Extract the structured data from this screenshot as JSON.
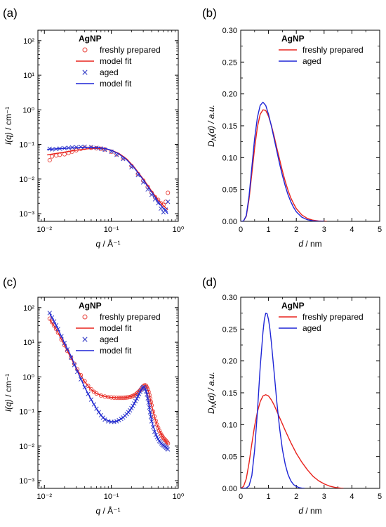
{
  "chart_data": [
    {
      "panel": "(a)",
      "type": "scatter",
      "xscale": "log",
      "yscale": "log",
      "xlim": [
        0.008,
        1.0
      ],
      "ylim": [
        0.0006,
        200
      ],
      "xticks": [
        0.01,
        0.1,
        1
      ],
      "xticklabels": [
        "10⁻²",
        "10⁻¹",
        "10⁰"
      ],
      "yticks": [
        0.001,
        0.01,
        0.1,
        1,
        10,
        100
      ],
      "yticklabels": [
        "10⁻³",
        "10⁻²",
        "10⁻¹",
        "10⁰",
        "10¹",
        "10²"
      ],
      "xlabel": "q / Å⁻¹",
      "ylabel": "I(q) / cm⁻¹",
      "legend_title": "AgNP",
      "legend": [
        "freshly prepared",
        "model fit",
        "aged",
        "model fit"
      ],
      "series": [
        {
          "name": "freshly prepared",
          "kind": "markers",
          "marker": "circle",
          "color": "#e8413a",
          "x": [
            0.012,
            0.013,
            0.015,
            0.017,
            0.02,
            0.023,
            0.026,
            0.03,
            0.035,
            0.04,
            0.05,
            0.06,
            0.07,
            0.08,
            0.1,
            0.12,
            0.15,
            0.2,
            0.25,
            0.3,
            0.35,
            0.4,
            0.45,
            0.5,
            0.55,
            0.6,
            0.65,
            0.7
          ],
          "y": [
            0.035,
            0.045,
            0.048,
            0.05,
            0.052,
            0.057,
            0.062,
            0.068,
            0.075,
            0.08,
            0.08,
            0.078,
            0.075,
            0.072,
            0.062,
            0.052,
            0.04,
            0.024,
            0.014,
            0.009,
            0.006,
            0.004,
            0.003,
            0.0025,
            0.002,
            0.0018,
            0.0022,
            0.004
          ]
        },
        {
          "name": "model fit",
          "kind": "line",
          "color": "#e8231d",
          "x": [
            0.011,
            0.02,
            0.03,
            0.045,
            0.06,
            0.08,
            0.1,
            0.13,
            0.17,
            0.22,
            0.3,
            0.4,
            0.5,
            0.6,
            0.7
          ],
          "y": [
            0.05,
            0.06,
            0.068,
            0.075,
            0.077,
            0.075,
            0.068,
            0.055,
            0.038,
            0.022,
            0.01,
            0.0045,
            0.0025,
            0.0017,
            0.0013
          ]
        },
        {
          "name": "aged",
          "kind": "markers",
          "marker": "cross",
          "color": "#3a43c8",
          "x": [
            0.012,
            0.013,
            0.015,
            0.017,
            0.02,
            0.023,
            0.026,
            0.03,
            0.035,
            0.04,
            0.05,
            0.06,
            0.07,
            0.08,
            0.1,
            0.12,
            0.15,
            0.2,
            0.25,
            0.3,
            0.35,
            0.4,
            0.45,
            0.5,
            0.55,
            0.6,
            0.65,
            0.7
          ],
          "y": [
            0.075,
            0.072,
            0.074,
            0.076,
            0.078,
            0.08,
            0.082,
            0.083,
            0.085,
            0.086,
            0.084,
            0.08,
            0.076,
            0.07,
            0.062,
            0.05,
            0.038,
            0.022,
            0.013,
            0.008,
            0.005,
            0.0035,
            0.0026,
            0.002,
            0.0014,
            0.0011,
            0.0013,
            0.0022
          ]
        },
        {
          "name": "model fit",
          "kind": "line",
          "color": "#1e25d6",
          "x": [
            0.011,
            0.02,
            0.03,
            0.045,
            0.06,
            0.08,
            0.1,
            0.13,
            0.17,
            0.22,
            0.3,
            0.4,
            0.5,
            0.6,
            0.7
          ],
          "y": [
            0.072,
            0.077,
            0.081,
            0.083,
            0.082,
            0.077,
            0.068,
            0.053,
            0.036,
            0.021,
            0.0095,
            0.0042,
            0.0022,
            0.0014,
            0.001
          ]
        }
      ]
    },
    {
      "panel": "(b)",
      "type": "line",
      "xlim": [
        0,
        5
      ],
      "ylim": [
        0,
        0.3
      ],
      "xticks": [
        0,
        1,
        2,
        3,
        4,
        5
      ],
      "xticklabels": [
        "0",
        "1",
        "2",
        "3",
        "4",
        "5"
      ],
      "yticks": [
        0,
        0.05,
        0.1,
        0.15,
        0.2,
        0.25,
        0.3
      ],
      "yticklabels": [
        "0.00",
        "0.05",
        "0.10",
        "0.15",
        "0.20",
        "0.25",
        "0.30"
      ],
      "xlabel": "d / nm",
      "ylabel": "D_N(d) / a.u.",
      "legend_title": "AgNP",
      "legend": [
        "freshly prepared",
        "aged"
      ],
      "series": [
        {
          "name": "freshly prepared",
          "color": "#e8231d",
          "x": [
            0,
            0.1,
            0.2,
            0.3,
            0.4,
            0.5,
            0.6,
            0.7,
            0.8,
            0.9,
            1.0,
            1.1,
            1.2,
            1.3,
            1.4,
            1.5,
            1.6,
            1.7,
            1.8,
            1.9,
            2.0,
            2.2,
            2.4,
            2.6,
            2.8,
            3.0,
            3.1
          ],
          "y": [
            0,
            0.0005,
            0.008,
            0.035,
            0.075,
            0.115,
            0.148,
            0.168,
            0.175,
            0.174,
            0.165,
            0.151,
            0.134,
            0.115,
            0.097,
            0.079,
            0.063,
            0.049,
            0.037,
            0.028,
            0.02,
            0.01,
            0.0045,
            0.0018,
            0.0006,
            0.0002,
            0
          ]
        },
        {
          "name": "aged",
          "color": "#1e25d6",
          "x": [
            0,
            0.1,
            0.2,
            0.3,
            0.4,
            0.5,
            0.6,
            0.7,
            0.8,
            0.9,
            1.0,
            1.1,
            1.2,
            1.3,
            1.4,
            1.5,
            1.6,
            1.7,
            1.8,
            1.9,
            2.0,
            2.2,
            2.4,
            2.6,
            2.8,
            3.0
          ],
          "y": [
            0,
            0.0005,
            0.009,
            0.04,
            0.085,
            0.13,
            0.163,
            0.182,
            0.187,
            0.182,
            0.168,
            0.15,
            0.13,
            0.11,
            0.09,
            0.072,
            0.056,
            0.042,
            0.031,
            0.022,
            0.015,
            0.0065,
            0.0025,
            0.0008,
            0.0002,
            0
          ]
        }
      ]
    },
    {
      "panel": "(c)",
      "type": "scatter",
      "xscale": "log",
      "yscale": "log",
      "xlim": [
        0.008,
        1.0
      ],
      "ylim": [
        0.0006,
        200
      ],
      "xticks": [
        0.01,
        0.1,
        1
      ],
      "xticklabels": [
        "10⁻²",
        "10⁻¹",
        "10⁰"
      ],
      "yticks": [
        0.001,
        0.01,
        0.1,
        1,
        10,
        100
      ],
      "yticklabels": [
        "10⁻³",
        "10⁻²",
        "10⁻¹",
        "10⁰",
        "10¹",
        "10²"
      ],
      "xlabel": "q / Å⁻¹",
      "ylabel": "I(q) / cm⁻¹",
      "legend_title": "AgNP",
      "legend": [
        "freshly prepared",
        "model fit",
        "aged",
        "model fit"
      ],
      "series": [
        {
          "name": "freshly prepared",
          "kind": "markers",
          "marker": "circle",
          "color": "#e8413a",
          "x": [
            0.012,
            0.013,
            0.014,
            0.015,
            0.016,
            0.018,
            0.02,
            0.022,
            0.025,
            0.028,
            0.031,
            0.035,
            0.04,
            0.045,
            0.05,
            0.055,
            0.06,
            0.07,
            0.08,
            0.09,
            0.1,
            0.11,
            0.12,
            0.13,
            0.14,
            0.15,
            0.16,
            0.17,
            0.18,
            0.19,
            0.2,
            0.21,
            0.22,
            0.23,
            0.24,
            0.25,
            0.26,
            0.27,
            0.28,
            0.29,
            0.3,
            0.31,
            0.32,
            0.33,
            0.34,
            0.35,
            0.36,
            0.37,
            0.38,
            0.39,
            0.4,
            0.42,
            0.44,
            0.46,
            0.48,
            0.5,
            0.52,
            0.54,
            0.56,
            0.58,
            0.6,
            0.62,
            0.64,
            0.66,
            0.68,
            0.7
          ],
          "y": [
            48,
            38,
            30,
            24,
            19,
            12,
            8.2,
            5.6,
            3.6,
            2.4,
            1.65,
            1.12,
            0.75,
            0.55,
            0.44,
            0.37,
            0.33,
            0.29,
            0.27,
            0.26,
            0.255,
            0.25,
            0.248,
            0.247,
            0.247,
            0.248,
            0.25,
            0.253,
            0.257,
            0.262,
            0.27,
            0.28,
            0.295,
            0.31,
            0.33,
            0.355,
            0.38,
            0.41,
            0.45,
            0.49,
            0.53,
            0.56,
            0.57,
            0.55,
            0.5,
            0.44,
            0.37,
            0.3,
            0.24,
            0.19,
            0.15,
            0.1,
            0.072,
            0.054,
            0.042,
            0.034,
            0.028,
            0.024,
            0.021,
            0.019,
            0.017,
            0.016,
            0.015,
            0.014,
            0.013,
            0.012
          ]
        },
        {
          "name": "model fit",
          "kind": "line",
          "color": "#e8231d",
          "x": [
            0.012,
            0.015,
            0.02,
            0.025,
            0.03,
            0.04,
            0.05,
            0.06,
            0.08,
            0.1,
            0.13,
            0.16,
            0.2,
            0.24,
            0.27,
            0.3,
            0.32,
            0.33,
            0.34,
            0.36,
            0.38,
            0.4,
            0.45,
            0.5,
            0.55,
            0.6,
            0.65,
            0.7
          ],
          "y": [
            46,
            24,
            8.0,
            3.5,
            1.8,
            0.72,
            0.43,
            0.33,
            0.27,
            0.255,
            0.247,
            0.25,
            0.27,
            0.33,
            0.41,
            0.53,
            0.57,
            0.55,
            0.5,
            0.37,
            0.24,
            0.15,
            0.062,
            0.034,
            0.023,
            0.017,
            0.014,
            0.011
          ]
        },
        {
          "name": "aged",
          "kind": "markers",
          "marker": "cross",
          "color": "#3a43c8",
          "x": [
            0.012,
            0.013,
            0.014,
            0.015,
            0.016,
            0.018,
            0.02,
            0.022,
            0.025,
            0.028,
            0.031,
            0.035,
            0.04,
            0.045,
            0.05,
            0.055,
            0.06,
            0.065,
            0.07,
            0.075,
            0.08,
            0.09,
            0.1,
            0.11,
            0.12,
            0.13,
            0.14,
            0.15,
            0.16,
            0.17,
            0.18,
            0.19,
            0.2,
            0.21,
            0.22,
            0.23,
            0.24,
            0.25,
            0.26,
            0.27,
            0.28,
            0.29,
            0.3,
            0.31,
            0.32,
            0.33,
            0.34,
            0.35,
            0.36,
            0.37,
            0.38,
            0.39,
            0.4,
            0.42,
            0.44,
            0.46,
            0.48,
            0.5,
            0.52,
            0.54,
            0.56,
            0.58,
            0.6,
            0.62,
            0.64,
            0.66,
            0.68,
            0.7
          ],
          "y": [
            70,
            52,
            40,
            31,
            24,
            15,
            9.5,
            6.2,
            3.6,
            2.2,
            1.4,
            0.85,
            0.5,
            0.32,
            0.22,
            0.16,
            0.12,
            0.095,
            0.078,
            0.066,
            0.058,
            0.052,
            0.05,
            0.05,
            0.052,
            0.056,
            0.061,
            0.067,
            0.075,
            0.084,
            0.095,
            0.108,
            0.125,
            0.145,
            0.17,
            0.2,
            0.235,
            0.275,
            0.32,
            0.37,
            0.42,
            0.47,
            0.51,
            0.5,
            0.45,
            0.38,
            0.31,
            0.24,
            0.18,
            0.13,
            0.095,
            0.07,
            0.052,
            0.035,
            0.026,
            0.021,
            0.018,
            0.016,
            0.014,
            0.013,
            0.012,
            0.011,
            0.0105,
            0.01,
            0.0095,
            0.009,
            0.0085,
            0.008
          ]
        },
        {
          "name": "model fit",
          "kind": "line",
          "color": "#1e25d6",
          "x": [
            0.012,
            0.015,
            0.02,
            0.025,
            0.03,
            0.04,
            0.05,
            0.06,
            0.07,
            0.08,
            0.1,
            0.12,
            0.15,
            0.18,
            0.21,
            0.24,
            0.27,
            0.29,
            0.3,
            0.31,
            0.33,
            0.35,
            0.38,
            0.4,
            0.45,
            0.5,
            0.55,
            0.6,
            0.65,
            0.7
          ],
          "y": [
            68,
            31,
            9.5,
            4.0,
            1.7,
            0.5,
            0.22,
            0.12,
            0.078,
            0.06,
            0.05,
            0.052,
            0.067,
            0.095,
            0.145,
            0.235,
            0.37,
            0.47,
            0.51,
            0.5,
            0.38,
            0.24,
            0.095,
            0.052,
            0.026,
            0.016,
            0.012,
            0.0105,
            0.0095,
            0.008
          ]
        }
      ]
    },
    {
      "panel": "(d)",
      "type": "line",
      "xlim": [
        0,
        5
      ],
      "ylim": [
        0,
        0.3
      ],
      "xticks": [
        0,
        1,
        2,
        3,
        4,
        5
      ],
      "xticklabels": [
        "0",
        "1",
        "2",
        "3",
        "4",
        "5"
      ],
      "yticks": [
        0,
        0.05,
        0.1,
        0.15,
        0.2,
        0.25,
        0.3
      ],
      "yticklabels": [
        "0.00",
        "0.05",
        "0.10",
        "0.15",
        "0.20",
        "0.25",
        "0.30"
      ],
      "xlabel": "d / nm",
      "ylabel": "D_N(d) / a.u.",
      "legend_title": "AgNP",
      "legend": [
        "freshly prepared",
        "aged"
      ],
      "series": [
        {
          "name": "freshly prepared",
          "color": "#e8231d",
          "x": [
            0,
            0.1,
            0.2,
            0.3,
            0.4,
            0.5,
            0.6,
            0.7,
            0.8,
            0.9,
            1.0,
            1.1,
            1.2,
            1.3,
            1.4,
            1.5,
            1.6,
            1.8,
            2.0,
            2.2,
            2.4,
            2.6,
            2.8,
            3.0,
            3.2,
            3.4,
            3.6,
            3.7
          ],
          "y": [
            0,
            0.003,
            0.015,
            0.04,
            0.07,
            0.098,
            0.12,
            0.136,
            0.145,
            0.147,
            0.145,
            0.139,
            0.131,
            0.121,
            0.111,
            0.101,
            0.091,
            0.072,
            0.055,
            0.041,
            0.029,
            0.019,
            0.012,
            0.007,
            0.0035,
            0.0015,
            0.0004,
            0
          ]
        },
        {
          "name": "aged",
          "color": "#1e25d6",
          "x": [
            0,
            0.2,
            0.3,
            0.4,
            0.5,
            0.6,
            0.7,
            0.8,
            0.85,
            0.9,
            0.95,
            1.0,
            1.05,
            1.1,
            1.2,
            1.3,
            1.4,
            1.5,
            1.6,
            1.7,
            1.8,
            1.9,
            2.0,
            2.1,
            2.2,
            2.3
          ],
          "y": [
            0,
            0.0005,
            0.004,
            0.02,
            0.06,
            0.12,
            0.19,
            0.245,
            0.265,
            0.275,
            0.274,
            0.265,
            0.25,
            0.23,
            0.183,
            0.135,
            0.094,
            0.061,
            0.038,
            0.022,
            0.012,
            0.006,
            0.003,
            0.0012,
            0.0004,
            0
          ]
        }
      ]
    }
  ]
}
